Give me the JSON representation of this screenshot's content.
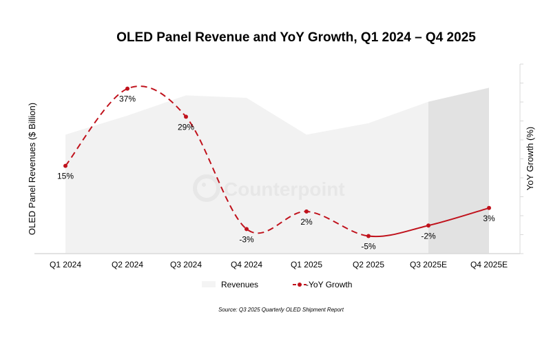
{
  "chart_data": {
    "type": "line",
    "title": "OLED Panel Revenue and YoY Growth, Q1 2024 – Q4 2025",
    "categories": [
      "Q1 2024",
      "Q2 2024",
      "Q3 2024",
      "Q4 2024",
      "Q1 2025",
      "Q2 2025",
      "Q3 2025E",
      "Q4 2025E"
    ],
    "series": [
      {
        "name": "Revenues",
        "type": "area",
        "axis": "left",
        "values": [
          9.4,
          10.9,
          12.5,
          12.3,
          9.4,
          10.3,
          12.0,
          13.1
        ],
        "forecast_from_index": 6,
        "color": "#f2f2f2",
        "forecast_color": "#e2e2e2"
      },
      {
        "name": "-YoY Growth",
        "type": "line",
        "axis": "right",
        "values": [
          15,
          37,
          29,
          -3,
          2,
          -5,
          -2,
          3
        ],
        "labels": [
          "15%",
          "37%",
          "29%",
          "-3%",
          "2%",
          "-5%",
          "-2%",
          "3%"
        ],
        "dashed_until_index": 5,
        "color": "#c0121c"
      }
    ],
    "ylabel": "OLED Panel Revenues ($ Billion)",
    "y2label": "YoY Growth (%)",
    "ylim": [
      0,
      18.4
    ],
    "y2lim": [
      -10,
      44
    ],
    "legend_position": "bottom",
    "watermark": "Counterpoint",
    "source": "Source: Q3 2025 Quarterly OLED Shipment Report"
  }
}
